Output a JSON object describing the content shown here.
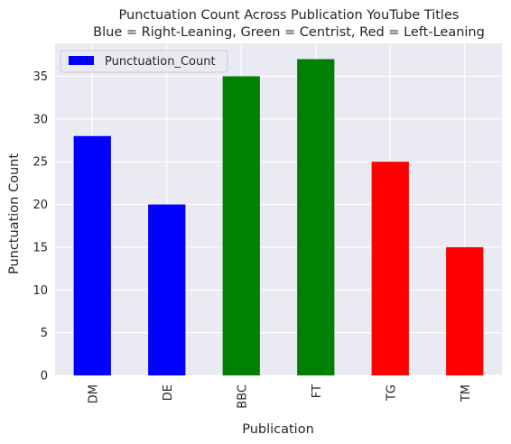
{
  "chart_data": {
    "type": "bar",
    "title": "Punctuation Count Across Publication YouTube Titles",
    "subtitle": "Blue = Right-Leaning, Green = Centrist, Red = Left-Leaning",
    "xlabel": "Publication",
    "ylabel": "Punctuation Count",
    "categories": [
      "DM",
      "DE",
      "BBC",
      "FT",
      "TG",
      "TM"
    ],
    "series": [
      {
        "name": "Punctuation_Count",
        "values": [
          28,
          20,
          35,
          37,
          25,
          15
        ],
        "colors": [
          "#0000ff",
          "#0000ff",
          "#008000",
          "#008000",
          "#ff0000",
          "#ff0000"
        ]
      }
    ],
    "ylim": [
      0,
      38.85
    ],
    "yticks": [
      0,
      5,
      10,
      15,
      20,
      25,
      30,
      35
    ],
    "grid": true,
    "legend_placement": "top-left",
    "legend_color": "#0000ff",
    "background_color": "#eaeaf2"
  }
}
